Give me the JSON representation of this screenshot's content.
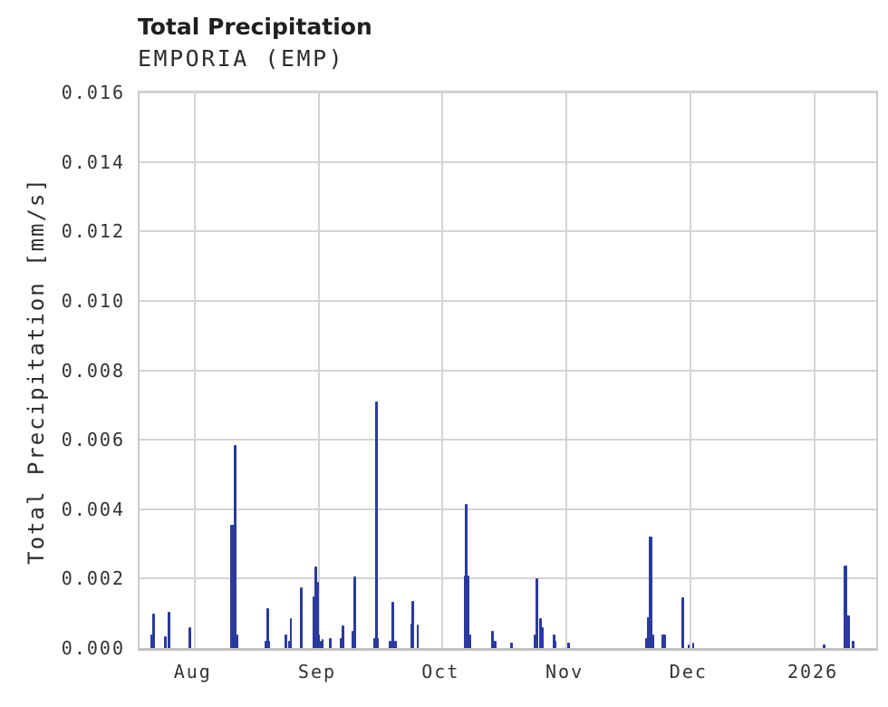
{
  "header": {
    "title": "Total Precipitation",
    "subtitle": "EMPORIA (EMP)"
  },
  "colors": {
    "bar": "#2b3a9e",
    "grid": "#d4d4d4",
    "spine": "#cccccc",
    "axis_bottom": "#c3c3c3",
    "tick_text": "#333333",
    "title_text": "#1f1f1f"
  },
  "chart_data": {
    "type": "bar",
    "title": "Total Precipitation",
    "subtitle": "EMPORIA (EMP)",
    "station": "EMPORIA (EMP)",
    "xlabel": "",
    "ylabel": "Total Precipitation [mm/s]",
    "unit": "mm/s",
    "ylim": [
      0,
      0.016
    ],
    "ytick_values": [
      0.0,
      0.002,
      0.004,
      0.006,
      0.008,
      0.01,
      0.012,
      0.014,
      0.016
    ],
    "ytick_labels": [
      "0.000",
      "0.002",
      "0.004",
      "0.006",
      "0.008",
      "0.010",
      "0.012",
      "0.014",
      "0.016"
    ],
    "xtick_labels": [
      "Aug",
      "Sep",
      "Oct",
      "Nov",
      "Dec",
      "2026"
    ],
    "xtick_days": [
      13.6,
      44.3,
      74.8,
      105.4,
      136.0,
      166.7
    ],
    "x_start": "2025-07-18",
    "x_end": "2026-01-16",
    "x_span_days": 181.9,
    "grid": true,
    "legend": false,
    "bars_format": [
      "day_offset_from_x_start",
      "width_days",
      "value_mm_per_s",
      "approx_date"
    ],
    "bars": [
      [
        3.24,
        1.12,
        0.0004,
        "Jul 21"
      ],
      [
        3.47,
        0.56,
        0.001,
        "Jul 21"
      ],
      [
        6.38,
        0.67,
        0.00035,
        "Jul 24"
      ],
      [
        7.27,
        0.67,
        0.00105,
        "Jul 25"
      ],
      [
        12.42,
        0.89,
        0.0006,
        "Jul 30"
      ],
      [
        22.93,
        1.12,
        0.00355,
        "Aug 10"
      ],
      [
        23.6,
        0.67,
        0.00585,
        "Aug 11"
      ],
      [
        24.16,
        0.45,
        0.0004,
        "Aug 11"
      ],
      [
        31.61,
        1.34,
        0.0002,
        "Aug 19"
      ],
      [
        31.66,
        0.56,
        0.00115,
        "Aug 19"
      ],
      [
        36.13,
        0.67,
        0.0004,
        "Aug 23"
      ],
      [
        36.91,
        0.45,
        0.0002,
        "Aug 24"
      ],
      [
        37.36,
        0.56,
        0.00086,
        "Aug 24"
      ],
      [
        40.04,
        0.67,
        0.00175,
        "Aug 27"
      ],
      [
        43.06,
        0.56,
        0.0015,
        "Aug 30"
      ],
      [
        43.51,
        0.67,
        0.00236,
        "Aug 30"
      ],
      [
        43.91,
        0.56,
        0.0019,
        "Aug 31"
      ],
      [
        44.3,
        0.56,
        0.0004,
        "Sep 1"
      ],
      [
        44.85,
        0.45,
        0.0002,
        "Sep 1"
      ],
      [
        45.3,
        0.45,
        0.00025,
        "Sep 2"
      ],
      [
        47.09,
        0.67,
        0.0003,
        "Sep 3"
      ],
      [
        49.78,
        0.67,
        0.0003,
        "Sep 6"
      ],
      [
        50.34,
        0.67,
        0.00065,
        "Sep 7"
      ],
      [
        52.57,
        0.56,
        0.0005,
        "Sep 9"
      ],
      [
        53.13,
        0.67,
        0.00205,
        "Sep 9"
      ],
      [
        58.5,
        1.34,
        0.0003,
        "Sep 15"
      ],
      [
        58.5,
        0.78,
        0.0071,
        "Sep 15"
      ],
      [
        61.97,
        0.67,
        0.0002,
        "Sep 18"
      ],
      [
        62.53,
        0.67,
        0.00133,
        "Sep 19"
      ],
      [
        63.2,
        0.67,
        0.0002,
        "Sep 19"
      ],
      [
        67.07,
        0.45,
        0.0007,
        "Sep 23"
      ],
      [
        67.45,
        0.67,
        0.00136,
        "Sep 24"
      ],
      [
        68.68,
        0.56,
        0.00067,
        "Sep 25"
      ],
      [
        80.98,
        1.79,
        0.0004,
        "Oct 7"
      ],
      [
        80.87,
        1.34,
        0.0021,
        "Oct 7"
      ],
      [
        80.65,
        0.67,
        0.00415,
        "Oct 7"
      ],
      [
        87.25,
        0.67,
        0.0005,
        "Oct 13"
      ],
      [
        87.81,
        0.67,
        0.0002,
        "Oct 14"
      ],
      [
        91.83,
        0.56,
        0.00015,
        "Oct 18"
      ],
      [
        97.65,
        0.45,
        0.0004,
        "Oct 24"
      ],
      [
        98.1,
        0.67,
        0.00202,
        "Oct 24"
      ],
      [
        98.99,
        0.56,
        0.00085,
        "Oct 25"
      ],
      [
        99.44,
        0.56,
        0.0006,
        "Oct 25"
      ],
      [
        102.35,
        0.67,
        0.0004,
        "Oct 28"
      ],
      [
        102.8,
        0.45,
        0.0002,
        "Oct 29"
      ],
      [
        105.93,
        0.67,
        0.00015,
        "Nov 1"
      ],
      [
        125.95,
        2.24,
        0.00028,
        "Nov 21"
      ],
      [
        126.06,
        1.34,
        0.0009,
        "Nov 21"
      ],
      [
        126.17,
        0.89,
        0.0032,
        "Nov 21"
      ],
      [
        126.96,
        0.45,
        0.0004,
        "Nov 22"
      ],
      [
        129.53,
        1.12,
        0.0004,
        "Nov 25"
      ],
      [
        134.12,
        0.78,
        0.00145,
        "Nov 29"
      ],
      [
        135.68,
        0.45,
        0.0001,
        "Dec 1"
      ],
      [
        136.69,
        0.56,
        0.00015,
        "Dec 2"
      ],
      [
        169.13,
        0.67,
        0.0001,
        "Jan 3"
      ],
      [
        174.38,
        0.89,
        0.00238,
        "Jan 8"
      ],
      [
        175.06,
        0.89,
        0.00095,
        "Jan 9"
      ],
      [
        176.17,
        0.67,
        0.0002,
        "Jan 10"
      ]
    ]
  }
}
